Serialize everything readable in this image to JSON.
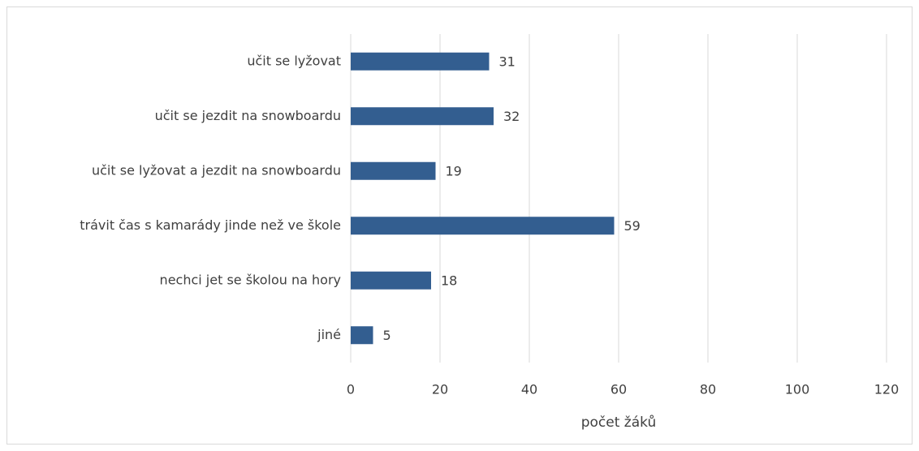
{
  "chart_data": {
    "type": "bar",
    "orientation": "horizontal",
    "categories": [
      "učit se lyžovat",
      "učit se jezdit na snowboardu",
      "učit se lyžovat a jezdit na snowboardu",
      "trávit čas s kamarády jinde než ve škole",
      "nechci jet se školou na hory",
      "jiné"
    ],
    "values": [
      31,
      32,
      19,
      59,
      18,
      5
    ],
    "color": "#335e90",
    "xlabel": "počet žáků",
    "xlim": [
      0,
      120
    ],
    "xticks": [
      0,
      20,
      40,
      60,
      80,
      100,
      120
    ],
    "grid": true
  }
}
